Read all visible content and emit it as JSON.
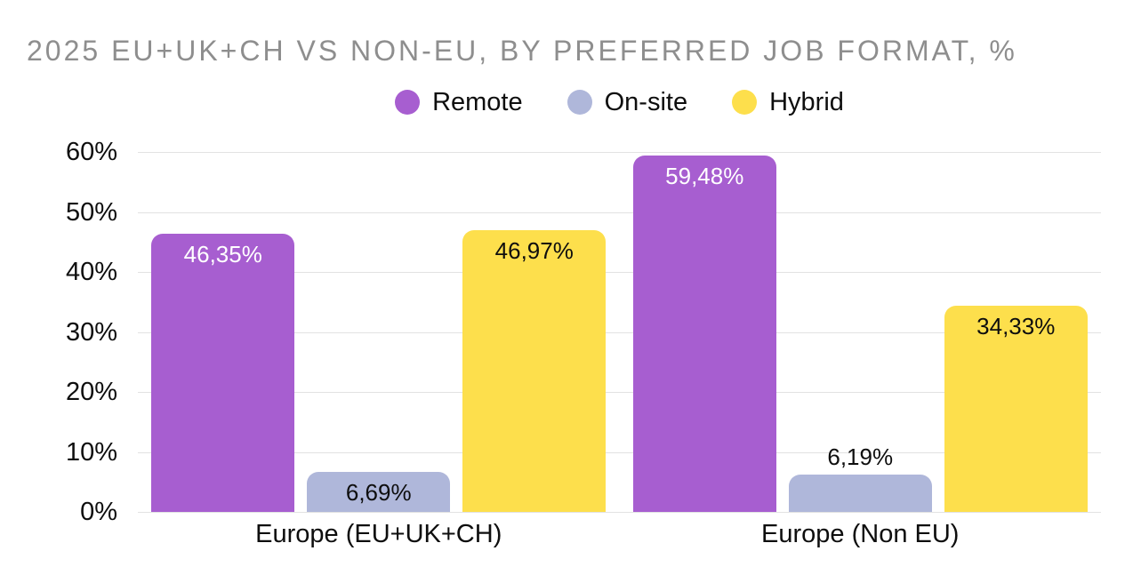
{
  "chart_data": {
    "type": "bar",
    "title": "2025 EU+UK+CH VS NON-EU, BY PREFERRED JOB FORMAT, %",
    "categories": [
      "Europe (EU+UK+CH)",
      "Europe (Non EU)"
    ],
    "series": [
      {
        "name": "Remote",
        "color": "#a75ed0",
        "label_color": "#ffffff",
        "values": [
          46.35,
          59.48
        ],
        "labels": [
          "46,35%",
          "59,48%"
        ]
      },
      {
        "name": "On-site",
        "color": "#afb7da",
        "label_color": "#0e0e0e",
        "values": [
          6.69,
          6.19
        ],
        "labels": [
          "6,69%",
          "6,19%"
        ]
      },
      {
        "name": "Hybrid",
        "color": "#fddf4c",
        "label_color": "#0e0e0e",
        "values": [
          46.97,
          34.33
        ],
        "labels": [
          "46,97%",
          "34,33%"
        ]
      }
    ],
    "y_ticks": [
      "0%",
      "10%",
      "20%",
      "30%",
      "40%",
      "50%",
      "60%"
    ],
    "ylim": [
      0,
      60
    ],
    "grid": true,
    "legend_position": "top",
    "colors": {
      "title_text": "#8e8e8e",
      "axis_text": "#0e0e0e",
      "gridline": "#e2e2e2",
      "background": "#ffffff"
    }
  }
}
